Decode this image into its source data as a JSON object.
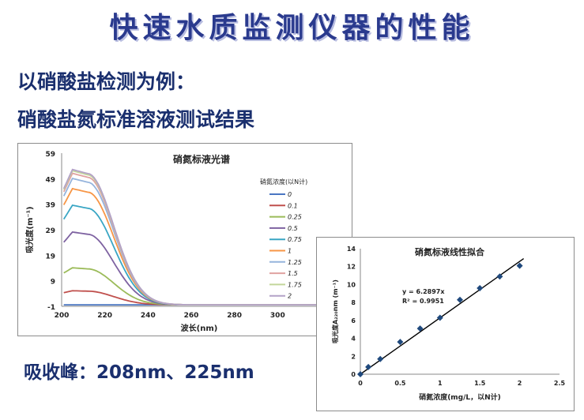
{
  "slide": {
    "title": "快速水质监测仪器的性能",
    "line1": "以硝酸盐检测为例：",
    "line2": "硝酸盐氮标准溶液测试结果",
    "peaks": "吸收峰：208nm、225nm"
  },
  "chart_data": [
    {
      "type": "line",
      "title": "硝氮标液光谱",
      "xlabel": "波长(nm)",
      "ylabel": "吸光度(m⁻¹)",
      "xlim": [
        200,
        320
      ],
      "ylim": [
        -1,
        59
      ],
      "xticks": [
        200,
        220,
        240,
        260,
        280,
        300
      ],
      "yticks": [
        -1,
        9,
        19,
        29,
        39,
        49,
        59
      ],
      "legend_title": "硝氮浓度(以N计)",
      "legend_position": "right",
      "grid": false,
      "series": [
        {
          "name": "0",
          "peak": 0.0,
          "color": "#4a76c2"
        },
        {
          "name": "0.1",
          "peak": 5.5,
          "color": "#c0504d"
        },
        {
          "name": "0.25",
          "peak": 14.5,
          "color": "#9bbb59"
        },
        {
          "name": "0.5",
          "peak": 28.5,
          "color": "#7e62a1"
        },
        {
          "name": "0.75",
          "peak": 39.0,
          "color": "#3aa6c4"
        },
        {
          "name": "1",
          "peak": 45.5,
          "color": "#f79646"
        },
        {
          "name": "1.25",
          "peak": 49.5,
          "color": "#96b4dc"
        },
        {
          "name": "1.5",
          "peak": 51.5,
          "color": "#e0a2a0"
        },
        {
          "name": "1.75",
          "peak": 52.5,
          "color": "#c3d69b"
        },
        {
          "name": "2",
          "peak": 53.0,
          "color": "#b3a2c7"
        }
      ]
    },
    {
      "type": "scatter",
      "title": "硝氮标液线性拟合",
      "xlabel": "硝氮浓度(mg/L，以N计)",
      "ylabel": "吸光度A₂₂₀nm (m⁻¹)",
      "xlim": [
        0,
        2.5
      ],
      "ylim": [
        0,
        14
      ],
      "xticks": [
        "0",
        "0.5",
        "1",
        "1.5",
        "2",
        "2.5"
      ],
      "yticks": [
        0,
        2,
        4,
        6,
        8,
        10,
        12,
        14
      ],
      "points": [
        [
          0,
          0.0
        ],
        [
          0.1,
          0.8
        ],
        [
          0.25,
          1.7
        ],
        [
          0.5,
          3.6
        ],
        [
          0.75,
          5.1
        ],
        [
          1.0,
          6.3
        ],
        [
          1.25,
          8.3
        ],
        [
          1.5,
          9.6
        ],
        [
          1.75,
          10.9
        ],
        [
          2.0,
          12.1
        ]
      ],
      "fit": {
        "slope": 6.2897,
        "equation": "y = 6.2897x",
        "r2": "R² = 0.9951"
      },
      "marker_color": "#1f497d"
    }
  ]
}
